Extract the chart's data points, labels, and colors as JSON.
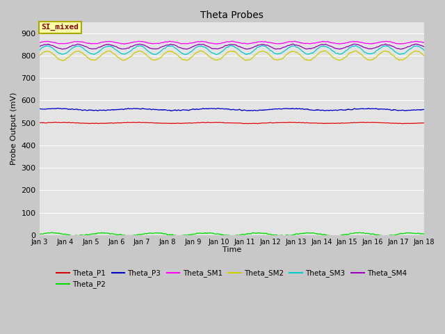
{
  "title": "Theta Probes",
  "xlabel": "Time",
  "ylabel": "Probe Output (mV)",
  "fig_width": 6.4,
  "fig_height": 4.8,
  "background_color": "#c8c8c8",
  "plot_bg_color": "#e4e4e4",
  "ylim": [
    0,
    950
  ],
  "yticks": [
    0,
    100,
    200,
    300,
    400,
    500,
    600,
    700,
    800,
    900
  ],
  "x_labels": [
    "Jan 3",
    "Jan 4",
    "Jan 5",
    "Jan 6",
    "Jan 7",
    "Jan 8",
    "Jan 9",
    "Jan 10",
    "Jan 11",
    "Jan 12",
    "Jan 13",
    "Jan 14",
    "Jan 15",
    "Jan 16",
    "Jan 17",
    "Jan 18"
  ],
  "annotation_text": "SI_mixed",
  "annotation_color": "#8b0000",
  "annotation_bg": "#ffffaa",
  "annotation_edge": "#aaaa00",
  "series_order": [
    "Theta_P1",
    "Theta_P2",
    "Theta_P3",
    "Theta_SM1",
    "Theta_SM2",
    "Theta_SM3",
    "Theta_SM4"
  ],
  "series": {
    "Theta_P1": {
      "color": "#dd0000",
      "base": 500,
      "amp": 2,
      "noise": 1.5,
      "wave_period": 3.0
    },
    "Theta_P2": {
      "color": "#00dd00",
      "base": 4,
      "amp": 6,
      "noise": 3.0,
      "wave_period": 2.0
    },
    "Theta_P3": {
      "color": "#0000cc",
      "base": 560,
      "amp": 4,
      "noise": 3.0,
      "wave_period": 3.0
    },
    "Theta_SM1": {
      "color": "#ff00ff",
      "base": 858,
      "amp": 5,
      "noise": 2.0,
      "wave_period": 1.2
    },
    "Theta_SM2": {
      "color": "#cccc00",
      "base": 800,
      "amp": 20,
      "noise": 3.0,
      "wave_period": 1.2
    },
    "Theta_SM3": {
      "color": "#00cccc",
      "base": 825,
      "amp": 18,
      "noise": 3.0,
      "wave_period": 1.2
    },
    "Theta_SM4": {
      "color": "#9900bb",
      "base": 840,
      "amp": 10,
      "noise": 2.5,
      "wave_period": 1.2
    }
  },
  "legend_order": [
    "Theta_P1",
    "Theta_P2",
    "Theta_P3",
    "Theta_SM1",
    "Theta_SM2",
    "Theta_SM3",
    "Theta_SM4"
  ]
}
